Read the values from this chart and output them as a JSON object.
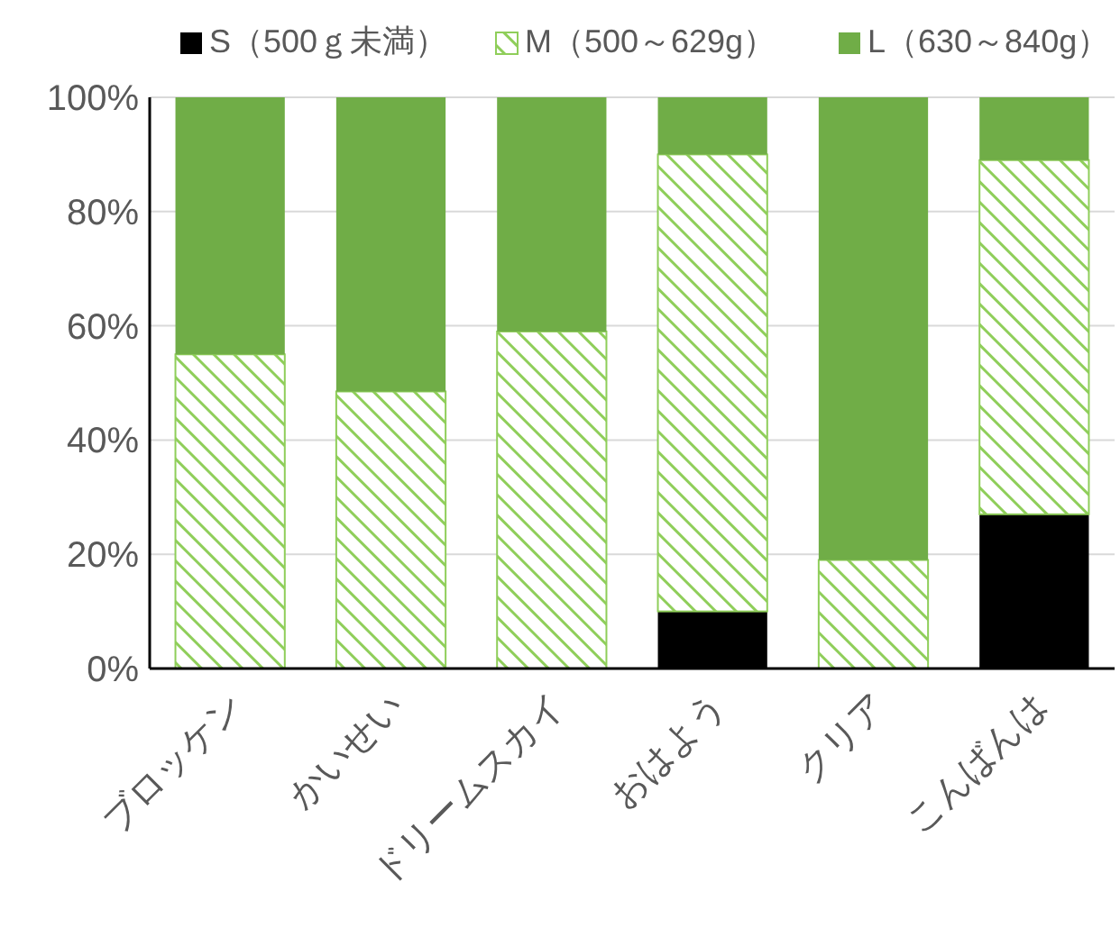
{
  "chart_data": {
    "type": "bar",
    "stacked": true,
    "categories": [
      "ブロッケン",
      "かいせい",
      "ドリームスカイ",
      "おはよう",
      "クリア",
      "こんばんは"
    ],
    "series": [
      {
        "name": "S（500ｇ未満）",
        "color": "#000000",
        "values": [
          0,
          0,
          0,
          10,
          0,
          27
        ]
      },
      {
        "name": "M（500～629g）",
        "color": "#8fce5a",
        "values": [
          55,
          48.5,
          59,
          80,
          19,
          62
        ]
      },
      {
        "name": "L（630～840g）",
        "color": "#70ad47",
        "values": [
          45,
          51.5,
          41,
          10,
          81,
          11
        ]
      }
    ],
    "ylim": [
      0,
      100
    ],
    "yticks": [
      {
        "value": 0,
        "label": "0%"
      },
      {
        "value": 20,
        "label": "20%"
      },
      {
        "value": 40,
        "label": "40%"
      },
      {
        "value": 60,
        "label": "60%"
      },
      {
        "value": 80,
        "label": "80%"
      },
      {
        "value": 100,
        "label": "100%"
      }
    ],
    "grid": "y",
    "legend": "top"
  }
}
